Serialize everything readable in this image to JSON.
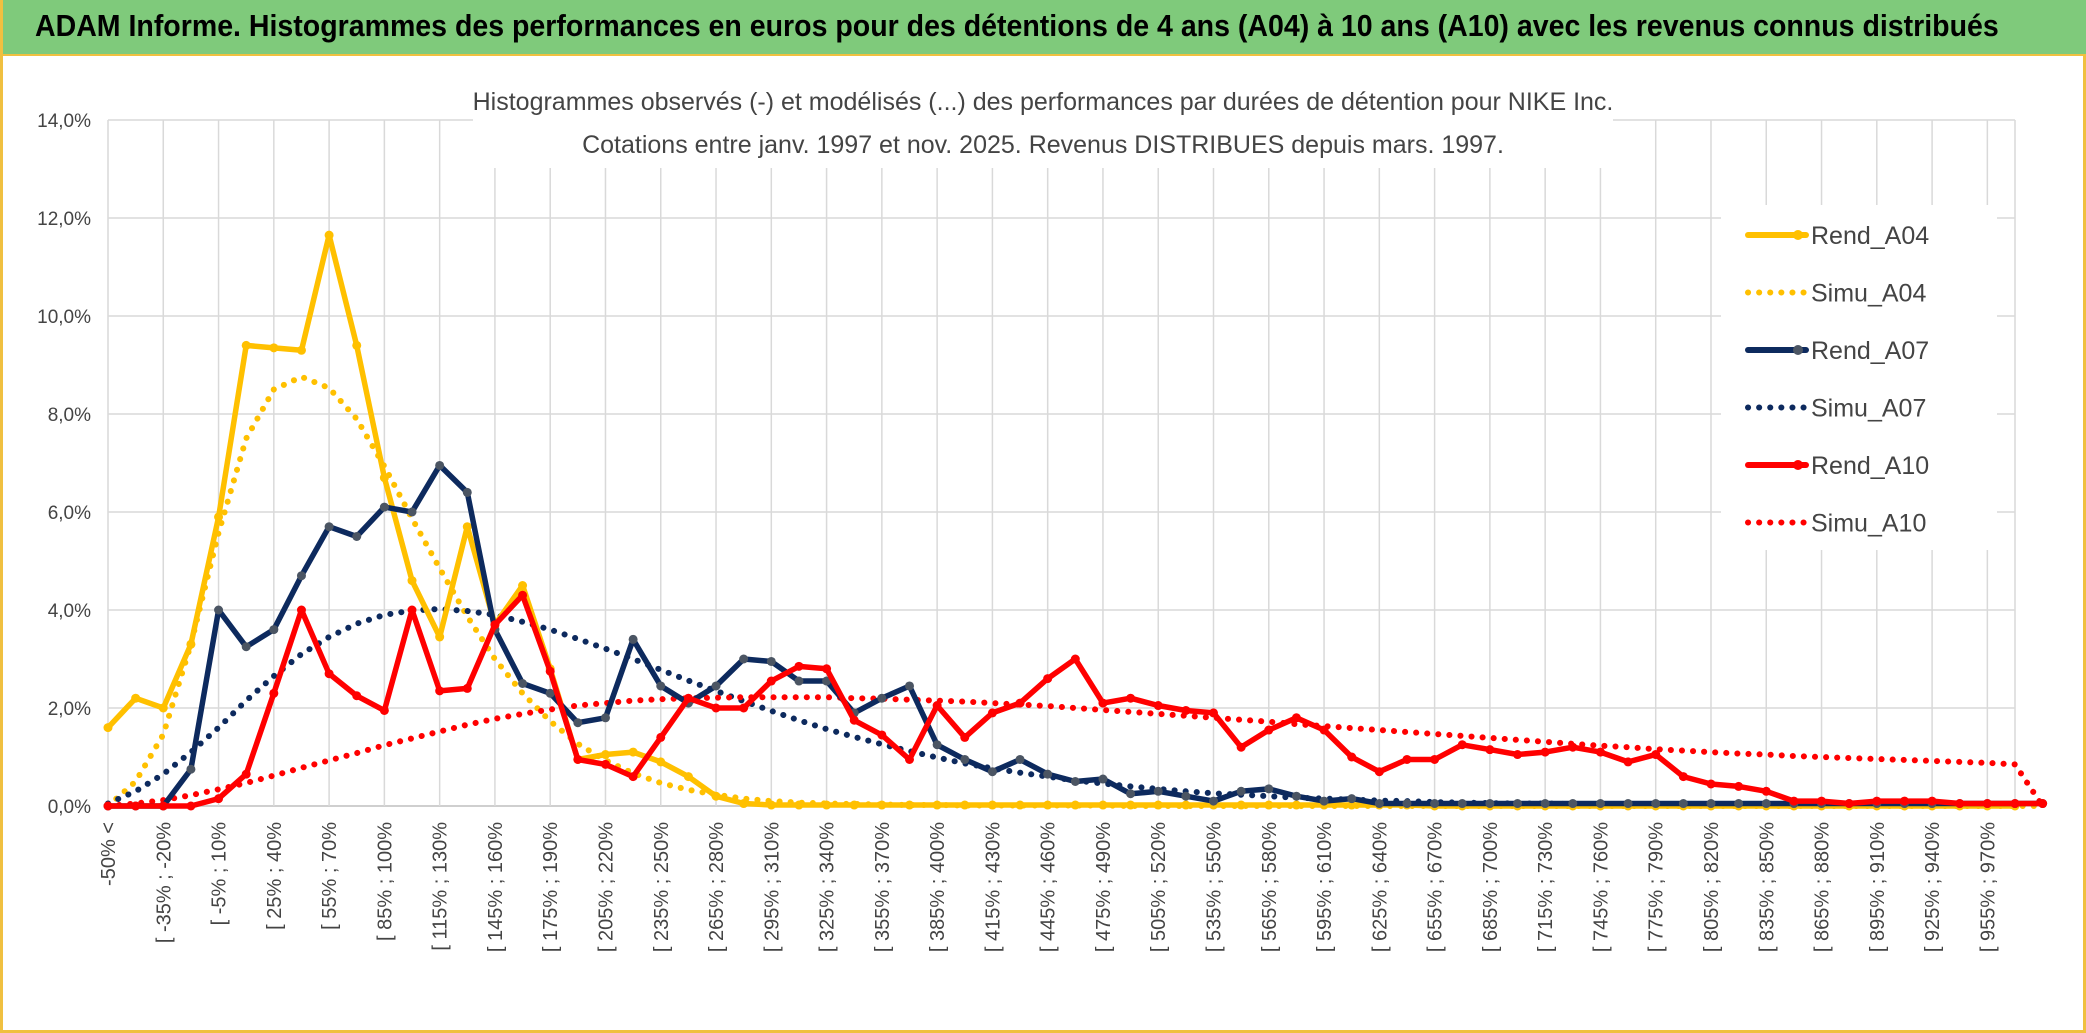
{
  "header": {
    "title": "ADAM Informe. Histogrammes des performances en euros pour des détentions de 4 ans (A04) à 10 ans (A10) avec les revenus connus distribués"
  },
  "chart_data": {
    "type": "line",
    "title": [
      "Histogrammes observés (-) et modélisés (...) des performances par durées de détention pour NIKE Inc.",
      "Cotations entre janv. 1997 et nov. 2025. Revenus DISTRIBUES depuis mars. 1997."
    ],
    "ylim": [
      0,
      14
    ],
    "yticks": [
      "0,0%",
      "2,0%",
      "4,0%",
      "6,0%",
      "8,0%",
      "10,0%",
      "12,0%",
      "14,0%"
    ],
    "x_labels": [
      "-50% <",
      "[ -35% ; -20%",
      "[ -5% ; 10%",
      "[ 25% ; 40%",
      "[ 55% ; 70%",
      "[ 85% ; 100%",
      "[ 115% ; 130%",
      "[ 145% ; 160%",
      "[ 175% ; 190%",
      "[ 205% ; 220%",
      "[ 235% ; 250%",
      "[ 265% ; 280%",
      "[ 295% ; 310%",
      "[ 325% ; 340%",
      "[ 355% ; 370%",
      "[ 385% ; 400%",
      "[ 415% ; 430%",
      "[ 445% ; 460%",
      "[ 475% ; 490%",
      "[ 505% ; 520%",
      "[ 535% ; 550%",
      "[ 565% ; 580%",
      "[ 595% ; 610%",
      "[ 625% ; 640%",
      "[ 655% ; 670%",
      "[ 685% ; 700%",
      "[ 715% ; 730%",
      "[ 745% ; 760%",
      "[ 775% ; 790%",
      "[ 805% ; 820%",
      "[ 835% ; 850%",
      "[ 865% ; 880%",
      "[ 895% ; 910%",
      "[ 925% ; 940%",
      "[ 955% ; 970%"
    ],
    "grid": true,
    "legend_position": "right",
    "series": [
      {
        "name": "Rend_A04",
        "color": "#ffc000",
        "style": "solid",
        "values": [
          1.6,
          2.2,
          2.0,
          3.3,
          5.9,
          9.4,
          9.35,
          9.3,
          11.65,
          9.4,
          6.7,
          4.6,
          3.45,
          5.7,
          3.7,
          4.5,
          2.8,
          0.95,
          1.05,
          1.1,
          0.9,
          0.6,
          0.2,
          0.05,
          0.02,
          0.02,
          0.02,
          0.02,
          0.02,
          0.02,
          0.02,
          0.02,
          0.02,
          0.02,
          0.02,
          0.02,
          0.02,
          0.02,
          0.02,
          0.02,
          0.02,
          0.02,
          0.02,
          0.02,
          0.02,
          0.02,
          0.02,
          0.02,
          0,
          0,
          0,
          0,
          0,
          0,
          0,
          0,
          0,
          0,
          0,
          0,
          0,
          0,
          0,
          0,
          0,
          0,
          0,
          0,
          0,
          0
        ]
      },
      {
        "name": "Simu_A04",
        "color": "#ffc000",
        "style": "dotted",
        "values": [
          0.0,
          0.5,
          1.46,
          3.3,
          5.58,
          7.5,
          8.5,
          8.76,
          8.53,
          7.9,
          6.93,
          5.87,
          4.85,
          3.87,
          3.0,
          2.3,
          1.73,
          1.27,
          0.93,
          0.67,
          0.47,
          0.33,
          0.23,
          0.15,
          0.1,
          0.07,
          0.05,
          0.04,
          0.03,
          0.02,
          0.02,
          0.01,
          0.01,
          0.01,
          0.01,
          0.01,
          0.01,
          0,
          0,
          0,
          0,
          0,
          0,
          0,
          0,
          0,
          0,
          0,
          0,
          0,
          0,
          0,
          0,
          0,
          0,
          0,
          0,
          0,
          0,
          0,
          0,
          0,
          0,
          0,
          0,
          0,
          0,
          0,
          0,
          0,
          0
        ]
      },
      {
        "name": "Rend_A07",
        "color": "#0d2a5e",
        "style": "solid",
        "values": [
          0,
          0,
          0,
          0.75,
          4.0,
          3.25,
          3.6,
          4.7,
          5.7,
          5.5,
          6.1,
          6.0,
          6.95,
          6.4,
          3.6,
          2.5,
          2.3,
          1.7,
          1.8,
          3.4,
          2.45,
          2.1,
          2.45,
          3.0,
          2.95,
          2.55,
          2.55,
          1.9,
          2.2,
          2.45,
          1.25,
          0.95,
          0.7,
          0.95,
          0.65,
          0.5,
          0.55,
          0.25,
          0.3,
          0.2,
          0.1,
          0.3,
          0.35,
          0.2,
          0.1,
          0.15,
          0.05,
          0.05,
          0.05,
          0.05,
          0.05,
          0.05,
          0.05,
          0.05,
          0.05,
          0.05,
          0.05,
          0.05,
          0.05,
          0.05,
          0.05,
          0.05,
          0.05,
          0.05,
          0.05,
          0.05,
          0.05,
          0.05,
          0.05,
          0.05,
          0.05
        ]
      },
      {
        "name": "Simu_A07",
        "color": "#0d2a5e",
        "style": "dotted",
        "values": [
          0.05,
          0.3,
          0.65,
          1.1,
          1.6,
          2.15,
          2.65,
          3.1,
          3.45,
          3.72,
          3.9,
          3.99,
          4.02,
          3.98,
          3.9,
          3.76,
          3.6,
          3.41,
          3.21,
          3.0,
          2.78,
          2.56,
          2.35,
          2.14,
          1.94,
          1.75,
          1.57,
          1.41,
          1.26,
          1.12,
          0.99,
          0.87,
          0.77,
          0.68,
          0.6,
          0.52,
          0.46,
          0.4,
          0.35,
          0.3,
          0.26,
          0.23,
          0.2,
          0.17,
          0.15,
          0.13,
          0.11,
          0.1,
          0.08,
          0.07,
          0.06,
          0.05,
          0.05,
          0.04,
          0.03,
          0.03,
          0.03,
          0.02,
          0.02,
          0.02,
          0.01,
          0.01,
          0.01,
          0.01,
          0.01,
          0.01,
          0.01,
          0.01,
          0.01,
          0.01
        ]
      },
      {
        "name": "Rend_A10",
        "color": "#ff0000",
        "style": "solid",
        "values": [
          0,
          0,
          0,
          0,
          0.15,
          0.65,
          2.3,
          4.0,
          2.7,
          2.25,
          1.95,
          4.0,
          2.35,
          2.4,
          3.7,
          4.3,
          2.75,
          0.95,
          0.85,
          0.6,
          1.4,
          2.2,
          2.0,
          2.0,
          2.55,
          2.85,
          2.8,
          1.75,
          1.45,
          0.95,
          2.05,
          1.4,
          1.9,
          2.1,
          2.6,
          3.0,
          2.1,
          2.2,
          2.05,
          1.95,
          1.9,
          1.2,
          1.55,
          1.8,
          1.55,
          1.0,
          0.7,
          0.95,
          0.95,
          1.25,
          1.15,
          1.05,
          1.1,
          1.2,
          1.1,
          0.9,
          1.05,
          0.6,
          0.45,
          0.4,
          0.3,
          0.1,
          0.1,
          0.05,
          0.1,
          0.1,
          0.1,
          0.05,
          0.05,
          0.05,
          0.05
        ]
      },
      {
        "name": "Simu_A10",
        "color": "#ff0000",
        "style": "dotted",
        "values": [
          0.0,
          0.05,
          0.12,
          0.22,
          0.34,
          0.47,
          0.62,
          0.78,
          0.93,
          1.08,
          1.24,
          1.38,
          1.52,
          1.66,
          1.78,
          1.88,
          1.97,
          2.05,
          2.1,
          2.15,
          2.18,
          2.2,
          2.21,
          2.22,
          2.22,
          2.22,
          2.22,
          2.2,
          2.19,
          2.17,
          2.15,
          2.13,
          2.1,
          2.07,
          2.04,
          2.0,
          1.96,
          1.92,
          1.88,
          1.84,
          1.8,
          1.76,
          1.72,
          1.67,
          1.63,
          1.59,
          1.55,
          1.51,
          1.47,
          1.43,
          1.39,
          1.35,
          1.31,
          1.27,
          1.23,
          1.2,
          1.16,
          1.13,
          1.1,
          1.07,
          1.05,
          1.02,
          1.0,
          0.98,
          0.96,
          0.94,
          0.92,
          0.9,
          0.88,
          0.85,
          0.0
        ]
      }
    ]
  }
}
